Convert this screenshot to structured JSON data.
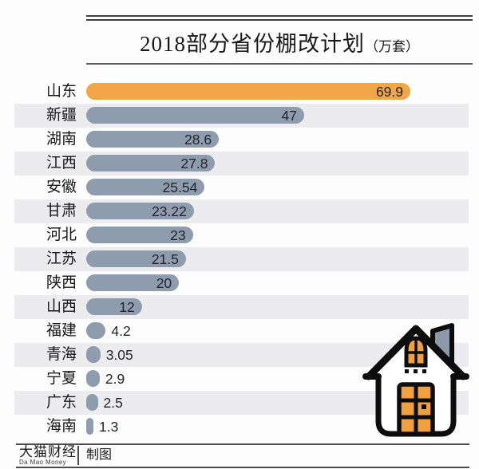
{
  "title": {
    "main": "2018部分省份棚改计划",
    "unit": "（万套）"
  },
  "chart_data": {
    "type": "bar",
    "orientation": "horizontal",
    "title": "2018部分省份棚改计划（万套）",
    "xlabel": "",
    "ylabel": "",
    "xlim": [
      0,
      69.9
    ],
    "grid": false,
    "legend": false,
    "categories": [
      "山东",
      "新疆",
      "湖南",
      "江西",
      "安徽",
      "甘肃",
      "河北",
      "江苏",
      "陕西",
      "山西",
      "福建",
      "青海",
      "宁夏",
      "广东",
      "海南"
    ],
    "values": [
      69.9,
      47,
      28.6,
      27.8,
      25.54,
      23.22,
      23,
      21.5,
      20,
      12,
      4.2,
      3.05,
      2.9,
      2.5,
      1.3
    ],
    "value_labels": [
      "69.9",
      "47",
      "28.6",
      "27.8",
      "25.54",
      "23.22",
      "23",
      "21.5",
      "20",
      "12",
      "4.2",
      "3.05",
      "2.9",
      "2.5",
      "1.3"
    ],
    "highlight_index": 0,
    "colors": {
      "highlight_bar": "#f3a648",
      "default_bar": "#8e9cae",
      "row_stripe": "#ececef",
      "value_text": "#22252c"
    }
  },
  "footer": {
    "brand": "大猫财经",
    "brand_sub": "Da Mao Money",
    "credit": "制图"
  },
  "icons": {
    "house": "house-icon",
    "house_colors": {
      "wall": "#ffffff",
      "door": "#f0a03f",
      "window": "#f0a03f",
      "chimney": "#8d99a8",
      "outline": "#0d0d0d"
    }
  }
}
